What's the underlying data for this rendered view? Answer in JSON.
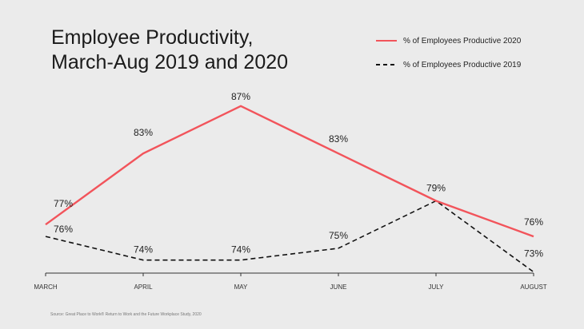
{
  "chart_data": {
    "type": "line",
    "title": "Employee Productivity,",
    "subtitle": "March-Aug 2019 and 2020",
    "categories": [
      "MARCH",
      "APRIL",
      "MAY",
      "JUNE",
      "JULY",
      "AUGUST"
    ],
    "series": [
      {
        "name": "% of Employees Productive 2020",
        "values": [
          77,
          83,
          87,
          83,
          79,
          76
        ],
        "labels": [
          "77%",
          "83%",
          "87%",
          "83%",
          "79%",
          "76%"
        ],
        "color": "#f2545b",
        "style": "solid"
      },
      {
        "name": "% of Employees Productive 2019",
        "values": [
          76,
          74,
          74,
          75,
          79,
          73
        ],
        "labels": [
          "76%",
          "74%",
          "74%",
          "75%",
          "",
          "73%"
        ],
        "color": "#111111",
        "style": "dashed"
      }
    ],
    "ylim": [
      72.5,
      88
    ],
    "grid": false,
    "legend_position": "top-right",
    "source": "Source: Great Place to Work® Return to Work and the Future Workplace Study, 2020"
  }
}
